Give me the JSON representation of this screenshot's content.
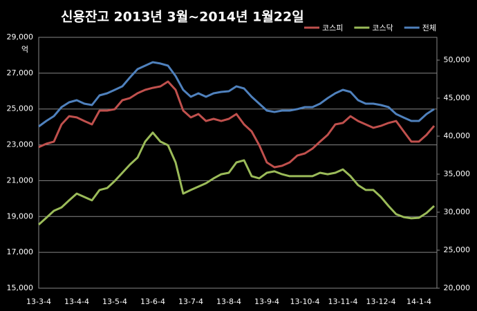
{
  "chart_data": {
    "type": "line",
    "title": "신용잔고 2013년 3월~2014년 1월22일",
    "y_unit": "억",
    "categories": [
      "13-3-4",
      null,
      null,
      null,
      null,
      "13-4-4",
      null,
      null,
      null,
      null,
      "13-5-4",
      null,
      null,
      null,
      null,
      "13-6-4",
      null,
      null,
      null,
      null,
      "13-7-4",
      null,
      null,
      null,
      null,
      "13-8-4",
      null,
      null,
      null,
      null,
      "13-9-4",
      null,
      null,
      null,
      null,
      "13-10-4",
      null,
      null,
      null,
      null,
      "13-11-4",
      null,
      null,
      null,
      null,
      "13-12-4",
      null,
      null,
      null,
      null,
      "14-1-4",
      null,
      null
    ],
    "series": [
      {
        "name": "코스피",
        "color": "#c0504d",
        "values": [
          22870,
          23060,
          23180,
          24140,
          24600,
          24530,
          24330,
          24140,
          24910,
          24910,
          24990,
          25490,
          25610,
          25880,
          26070,
          26180,
          26260,
          26530,
          26070,
          24910,
          24530,
          24720,
          24330,
          24450,
          24330,
          24450,
          24720,
          24140,
          23750,
          22980,
          22020,
          21750,
          21830,
          22020,
          22400,
          22520,
          22790,
          23180,
          23560,
          24140,
          24220,
          24600,
          24330,
          24140,
          23950,
          24060,
          24220,
          24330,
          23750,
          23180,
          23180,
          23560,
          24060
        ]
      },
      {
        "name": "코스닥",
        "color": "#9bbb59",
        "values": [
          18550,
          18930,
          19320,
          19510,
          19900,
          20280,
          20090,
          19900,
          20480,
          20590,
          20980,
          21440,
          21900,
          22290,
          23180,
          23680,
          23180,
          22980,
          22020,
          20280,
          20480,
          20670,
          20860,
          21130,
          21360,
          21440,
          22020,
          22140,
          21250,
          21130,
          21440,
          21520,
          21360,
          21250,
          21250,
          21250,
          21250,
          21440,
          21360,
          21440,
          21630,
          21250,
          20750,
          20480,
          20480,
          20090,
          19590,
          19130,
          18970,
          18900,
          18930,
          19200,
          19590
        ]
      },
      {
        "name": "전체",
        "color": "#4f81bd",
        "axis": "y2",
        "values": [
          41270,
          42000,
          42640,
          43820,
          44450,
          44730,
          44270,
          44090,
          45360,
          45640,
          46090,
          46550,
          47730,
          48820,
          49270,
          49730,
          49550,
          49270,
          47910,
          46090,
          45180,
          45640,
          45180,
          45640,
          45820,
          45910,
          46550,
          46270,
          45180,
          44270,
          43360,
          43180,
          43360,
          43360,
          43550,
          43820,
          43820,
          44270,
          45000,
          45640,
          46090,
          45820,
          44730,
          44270,
          44270,
          44090,
          43820,
          42910,
          42450,
          42000,
          42000,
          42910,
          43550
        ]
      }
    ],
    "ylim": [
      15000,
      29000
    ],
    "yticks": [
      {
        "value": 15000,
        "label": "15,000"
      },
      {
        "value": 17000,
        "label": "17,000"
      },
      {
        "value": 19000,
        "label": "19,000"
      },
      {
        "value": 21000,
        "label": "21,000"
      },
      {
        "value": 23000,
        "label": "23,000"
      },
      {
        "value": 25000,
        "label": "25,000"
      },
      {
        "value": 27000,
        "label": "27,000"
      },
      {
        "value": 29000,
        "label": "29,000"
      }
    ],
    "y2lim": [
      20000,
      53000
    ],
    "y2ticks": [
      {
        "value": 20000,
        "label": "20,000"
      },
      {
        "value": 25000,
        "label": "25,000"
      },
      {
        "value": 30000,
        "label": "30,000"
      },
      {
        "value": 35000,
        "label": "35,000"
      },
      {
        "value": 40000,
        "label": "40,000"
      },
      {
        "value": 45000,
        "label": "45,000"
      },
      {
        "value": 50000,
        "label": "50,000"
      }
    ],
    "grid": true,
    "legend": "top-right"
  }
}
